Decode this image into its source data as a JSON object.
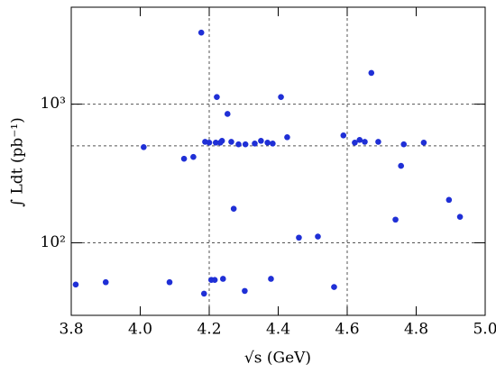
{
  "chart_data": {
    "type": "scatter",
    "x_label": "√s (GeV)",
    "y_label": "∫ Ldt (pb⁻¹)",
    "color": "#1f2fd6",
    "log_y": true,
    "x": [
      3.813,
      3.9,
      4.01,
      4.085,
      4.127,
      4.154,
      4.177,
      4.185,
      4.188,
      4.2,
      4.206,
      4.216,
      4.219,
      4.222,
      4.232,
      4.237,
      4.24,
      4.253,
      4.264,
      4.271,
      4.285,
      4.305,
      4.303,
      4.332,
      4.35,
      4.369,
      4.384,
      4.379,
      4.408,
      4.426,
      4.46,
      4.515,
      4.562,
      4.589,
      4.622,
      4.636,
      4.651,
      4.67,
      4.69,
      4.74,
      4.756,
      4.764,
      4.822,
      4.895,
      4.927
    ],
    "values": [
      50,
      52,
      490,
      52,
      404,
      416,
      3280,
      43,
      535,
      528,
      54,
      54,
      528,
      1126,
      528,
      544,
      55,
      850,
      535,
      176,
      513,
      513,
      45,
      520,
      544,
      528,
      520,
      55,
      1126,
      577,
      109,
      111,
      48,
      595,
      528,
      552,
      535,
      1680,
      535,
      147,
      359,
      513,
      528,
      204,
      154
    ],
    "xlim": [
      3.8,
      5.0
    ],
    "ylim": [
      30,
      5000
    ],
    "xticks": [
      3.8,
      {
        "value": 4,
        "label": "4.0"
      },
      4.2,
      4.4,
      4.6,
      4.8,
      {
        "value": 5,
        "label": "5.0"
      }
    ],
    "yticks": [
      {
        "value": 100,
        "label": "10²"
      },
      {
        "value": 1000,
        "label": "10³"
      }
    ],
    "hlines": [
      100,
      500,
      1000
    ],
    "vlines": [
      4.2,
      4.6
    ]
  }
}
